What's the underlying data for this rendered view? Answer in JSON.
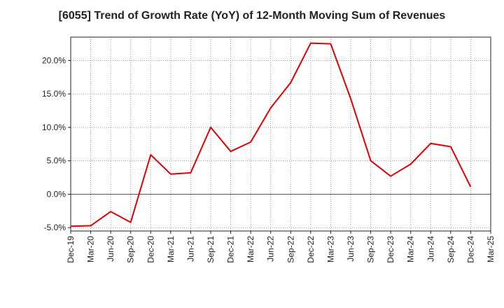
{
  "chart_data": {
    "type": "line",
    "title": "[6055]  Trend of Growth Rate (YoY) of 12-Month Moving Sum of Revenues",
    "xlabel": "",
    "ylabel": "",
    "categories": [
      "Dec-19",
      "Mar-20",
      "Jun-20",
      "Sep-20",
      "Dec-20",
      "Mar-21",
      "Jun-21",
      "Sep-21",
      "Dec-21",
      "Mar-22",
      "Jun-22",
      "Sep-22",
      "Dec-22",
      "Mar-23",
      "Jun-23",
      "Sep-23",
      "Dec-23",
      "Mar-24",
      "Jun-24",
      "Sep-24",
      "Dec-24",
      "Mar-25"
    ],
    "series": [
      {
        "name": "",
        "color": "#e00000",
        "values": [
          -4.8,
          -4.7,
          -2.6,
          -4.2,
          5.9,
          3.0,
          3.2,
          10.0,
          6.4,
          7.8,
          12.9,
          16.7,
          22.6,
          22.5,
          14.3,
          5.0,
          2.7,
          4.5,
          7.6,
          7.1,
          1.1,
          null
        ]
      }
    ],
    "ylim": [
      -5.5,
      23.5
    ],
    "yticks": [
      -5.0,
      0.0,
      5.0,
      10.0,
      15.0,
      20.0
    ],
    "ytick_labels": [
      "-5.0%",
      "0.0%",
      "5.0%",
      "10.0%",
      "15.0%",
      "20.0%"
    ],
    "grid": true,
    "legend": "none"
  }
}
